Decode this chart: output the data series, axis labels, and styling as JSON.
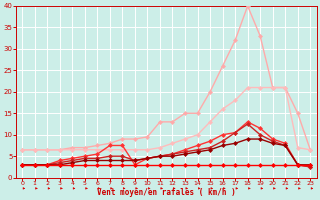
{
  "background_color": "#cceee8",
  "grid_color": "#ffffff",
  "xlabel": "Vent moyen/en rafales ( km/h )",
  "xlim": [
    -0.5,
    23.5
  ],
  "ylim": [
    0,
    40
  ],
  "xticks": [
    0,
    1,
    2,
    3,
    4,
    5,
    6,
    7,
    8,
    9,
    10,
    11,
    12,
    13,
    14,
    15,
    16,
    17,
    18,
    19,
    20,
    21,
    22,
    23
  ],
  "yticks": [
    0,
    5,
    10,
    15,
    20,
    25,
    30,
    35,
    40
  ],
  "lines": [
    {
      "color": "#ffaaaa",
      "x": [
        0,
        1,
        2,
        3,
        4,
        5,
        6,
        7,
        8,
        9,
        10,
        11,
        12,
        13,
        14,
        15,
        16,
        17,
        18,
        19,
        20,
        21,
        22,
        23
      ],
      "y": [
        6.5,
        6.5,
        6.5,
        6.5,
        7.0,
        7.0,
        7.5,
        8.0,
        9.0,
        9.0,
        9.5,
        13,
        13,
        15,
        15,
        20,
        26,
        32,
        40,
        33,
        21,
        21,
        15,
        6.5
      ],
      "marker": "D",
      "markersize": 2,
      "linewidth": 1.0
    },
    {
      "color": "#ffbbbb",
      "x": [
        0,
        1,
        2,
        3,
        4,
        5,
        6,
        7,
        8,
        9,
        10,
        11,
        12,
        13,
        14,
        15,
        16,
        17,
        18,
        19,
        20,
        21,
        22,
        23
      ],
      "y": [
        6.5,
        6.5,
        6.5,
        6.5,
        6.5,
        6.5,
        6.5,
        6.5,
        6.5,
        6.5,
        6.5,
        7.0,
        8.0,
        9.0,
        10,
        13,
        16,
        18,
        21,
        21,
        21,
        21,
        7,
        6.5
      ],
      "marker": "D",
      "markersize": 2,
      "linewidth": 1.0
    },
    {
      "color": "#ff3333",
      "x": [
        0,
        1,
        2,
        3,
        4,
        5,
        6,
        7,
        8,
        9,
        10,
        11,
        12,
        13,
        14,
        15,
        16,
        17,
        18,
        19,
        20,
        21,
        22,
        23
      ],
      "y": [
        3,
        3,
        3,
        4,
        4.5,
        5.0,
        5.5,
        7.5,
        7.5,
        3.0,
        4.5,
        5.0,
        5.5,
        6.5,
        7.5,
        8.5,
        10,
        10.5,
        13,
        11.5,
        9,
        8,
        3,
        2.5
      ],
      "marker": "D",
      "markersize": 2,
      "linewidth": 1.0
    },
    {
      "color": "#cc2222",
      "x": [
        0,
        1,
        2,
        3,
        4,
        5,
        6,
        7,
        8,
        9,
        10,
        11,
        12,
        13,
        14,
        15,
        16,
        17,
        18,
        19,
        20,
        21,
        22,
        23
      ],
      "y": [
        3,
        3,
        3,
        3.5,
        4,
        4.5,
        4.5,
        5,
        5,
        4,
        4.5,
        5,
        5.5,
        6,
        6.5,
        7,
        8.5,
        10.5,
        12.5,
        10,
        8.5,
        7.5,
        3,
        2.5
      ],
      "marker": "D",
      "markersize": 2,
      "linewidth": 1.0
    },
    {
      "color": "#990000",
      "x": [
        0,
        1,
        2,
        3,
        4,
        5,
        6,
        7,
        8,
        9,
        10,
        11,
        12,
        13,
        14,
        15,
        16,
        17,
        18,
        19,
        20,
        21,
        22,
        23
      ],
      "y": [
        3,
        3,
        3,
        3,
        3.5,
        4,
        4,
        4,
        4,
        4,
        4.5,
        5,
        5,
        5.5,
        6,
        6.5,
        7.5,
        8,
        9,
        9,
        8,
        7.5,
        3,
        3
      ],
      "marker": "D",
      "markersize": 2,
      "linewidth": 1.0
    },
    {
      "color": "#ff0000",
      "x": [
        0,
        1,
        2,
        3,
        4,
        5,
        6,
        7,
        8,
        9,
        10,
        11,
        12,
        13,
        14,
        15,
        16,
        17,
        18,
        19,
        20,
        21,
        22,
        23
      ],
      "y": [
        3,
        3,
        3,
        3,
        3,
        3,
        3,
        3,
        3,
        3,
        3,
        3,
        3,
        3,
        3,
        3,
        3,
        3,
        3,
        3,
        3,
        3,
        3,
        3
      ],
      "marker": "D",
      "markersize": 2,
      "linewidth": 1.0
    }
  ]
}
